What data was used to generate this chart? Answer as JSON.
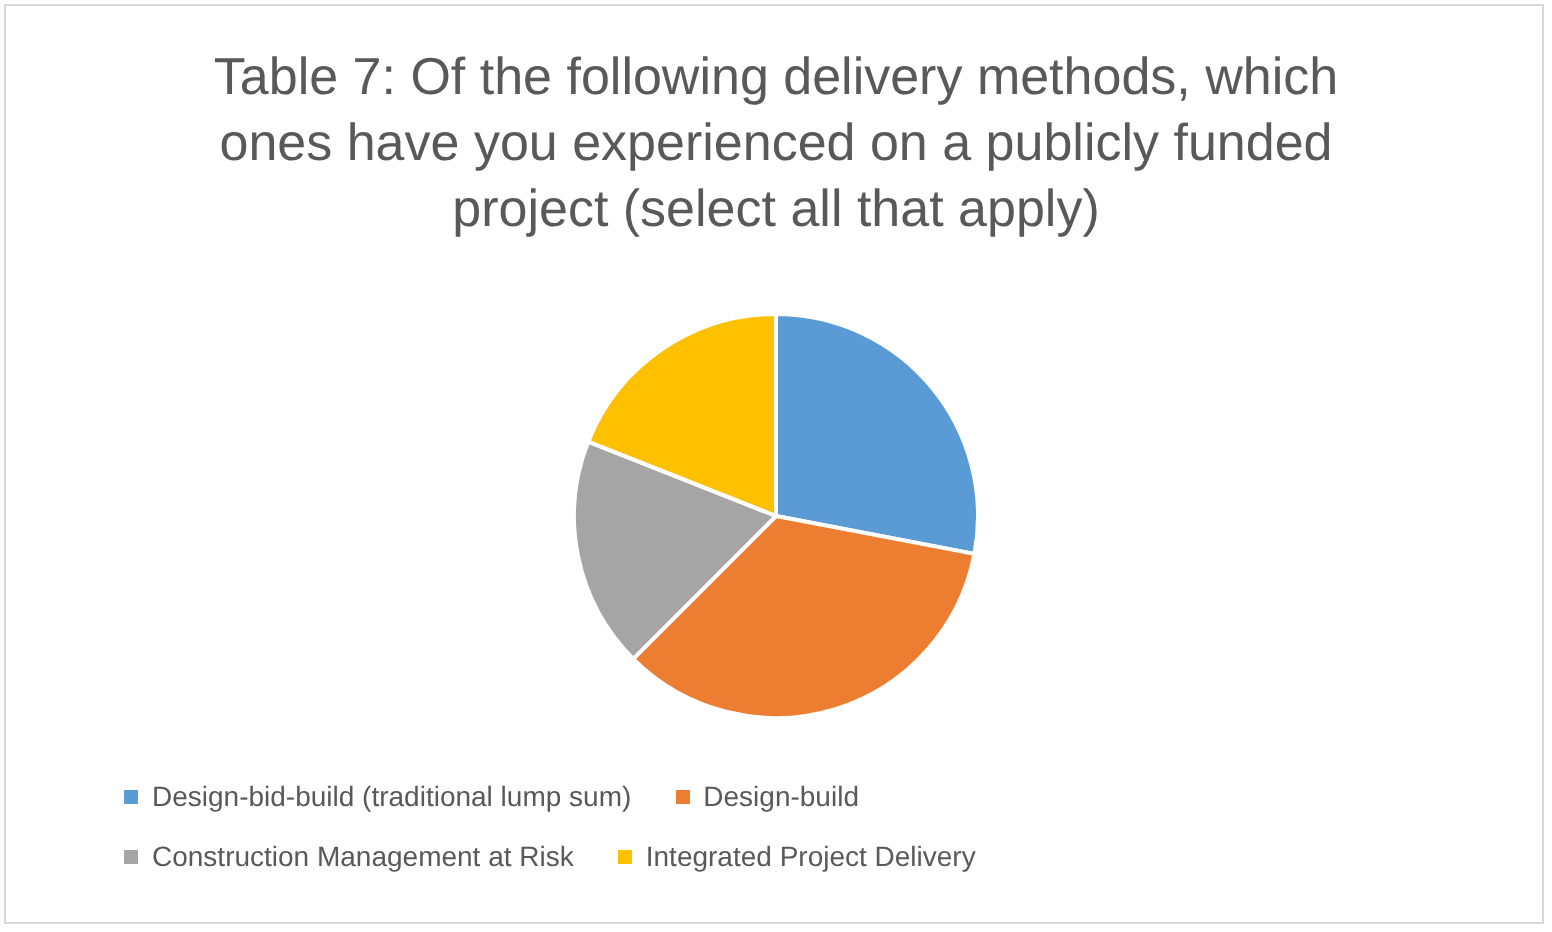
{
  "chart_data": {
    "type": "pie",
    "title": "Table 7: Of the following delivery methods, which ones have you experienced on a publicly funded project (select all that apply)",
    "categories": [
      "Design-bid-build (traditional lump sum)",
      "Design-build",
      "Construction Management at Risk",
      "Integrated Project Delivery"
    ],
    "values": [
      28,
      34.5,
      18.5,
      19
    ],
    "colors": [
      "#5b9bd5",
      "#ed7d31",
      "#a5a5a5",
      "#ffc000"
    ],
    "legend": "bottom"
  }
}
